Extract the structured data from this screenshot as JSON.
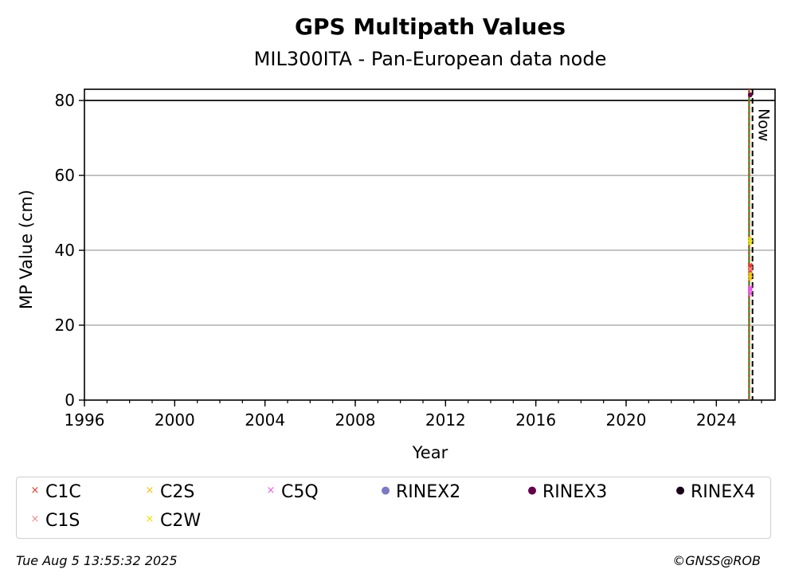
{
  "chart_data": {
    "type": "scatter",
    "title": "GPS Multipath Values",
    "subtitle": "MIL300ITA - Pan-European data node",
    "xlabel": "Year",
    "ylabel": "MP Value (cm)",
    "xlim": [
      1996,
      2026.6
    ],
    "ylim": [
      0,
      83
    ],
    "xticks": [
      1996,
      2000,
      2004,
      2008,
      2012,
      2016,
      2020,
      2024
    ],
    "yticks": [
      0,
      20,
      40,
      60,
      80
    ],
    "grid": "horizontal",
    "threshold_line": 80,
    "now_label": "Now",
    "now_x": 2025.6,
    "rinex_change_x": 2025.45,
    "series": [
      {
        "name": "C1C",
        "color": "#e8392a",
        "marker": "x",
        "points": [
          [
            2025.5,
            34.5
          ],
          [
            2025.5,
            35.5
          ],
          [
            2025.5,
            36.0
          ]
        ]
      },
      {
        "name": "C1S",
        "color": "#f08a8a",
        "marker": "x",
        "points": [
          [
            2025.5,
            35.0
          ]
        ]
      },
      {
        "name": "C2S",
        "color": "#f5c400",
        "marker": "x",
        "points": [
          [
            2025.5,
            32.5
          ],
          [
            2025.5,
            33.5
          ]
        ]
      },
      {
        "name": "C2W",
        "color": "#f2e100",
        "marker": "x",
        "points": [
          [
            2025.5,
            42.0
          ],
          [
            2025.5,
            43.0
          ]
        ]
      },
      {
        "name": "C5Q",
        "color": "#ee55ee",
        "marker": "x",
        "points": [
          [
            2025.5,
            28.5
          ],
          [
            2025.5,
            29.5
          ],
          [
            2025.5,
            30.0
          ]
        ]
      },
      {
        "name": "RINEX2",
        "color": "#7b7bc4",
        "marker": "o",
        "points": []
      },
      {
        "name": "RINEX3",
        "color": "#66004d",
        "marker": "o",
        "points": [
          [
            2025.5,
            81.5
          ]
        ]
      },
      {
        "name": "RINEX4",
        "color": "#1a0018",
        "marker": "o",
        "points": []
      }
    ]
  },
  "legend": [
    {
      "label": "C1C",
      "color": "#e8392a",
      "marker": "×"
    },
    {
      "label": "C2S",
      "color": "#f5c400",
      "marker": "×"
    },
    {
      "label": "C5Q",
      "color": "#ee55ee",
      "marker": "×"
    },
    {
      "label": "RINEX2",
      "color": "#7b7bc4",
      "marker": "●"
    },
    {
      "label": "RINEX3",
      "color": "#66004d",
      "marker": "●"
    },
    {
      "label": "RINEX4",
      "color": "#1a0018",
      "marker": "●"
    },
    {
      "label": "C1S",
      "color": "#f08a8a",
      "marker": "×"
    },
    {
      "label": "C2W",
      "color": "#f2e100",
      "marker": "×"
    }
  ],
  "footer": {
    "timestamp": "Tue Aug  5 13:55:32 2025",
    "credit": "©GNSS@ROB"
  }
}
